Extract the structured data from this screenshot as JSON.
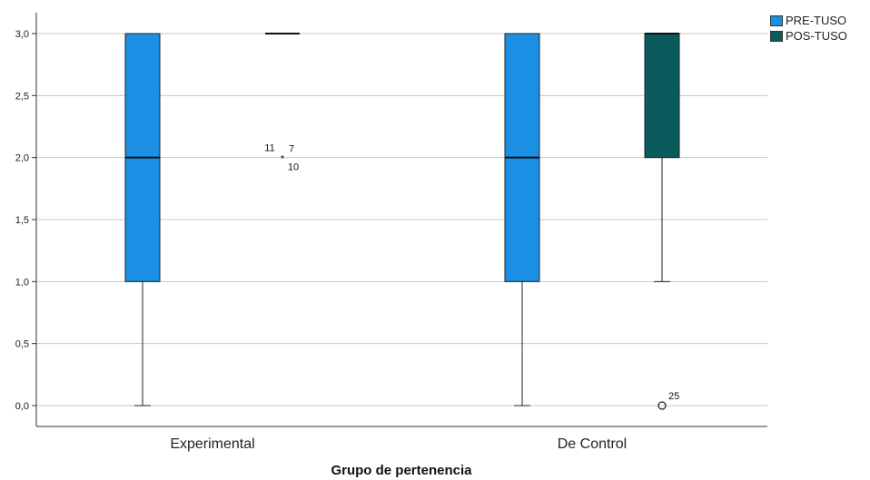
{
  "chart_data": {
    "type": "boxplot",
    "xlabel": "Grupo de pertenencia",
    "ylim": [
      0,
      3
    ],
    "yticks": [
      "0,0",
      "0,5",
      "1,0",
      "1,5",
      "2,0",
      "2,5",
      "3,0"
    ],
    "categories": [
      "Experimental",
      "De Control"
    ],
    "grid": true,
    "legend": "top-right",
    "series": [
      {
        "name": "PRE-TUSO",
        "color": "#1a8fe3",
        "boxes": [
          {
            "category": "Experimental",
            "min": 0,
            "q1": 1,
            "median": 2,
            "q3": 3,
            "max": 3,
            "outliers": []
          },
          {
            "category": "De Control",
            "min": 0,
            "q1": 1,
            "median": 2,
            "q3": 3,
            "max": 3,
            "outliers": []
          }
        ]
      },
      {
        "name": "POS-TUSO",
        "color": "#0a5c5c",
        "boxes": [
          {
            "category": "Experimental",
            "min": 3,
            "q1": 3,
            "median": 3,
            "q3": 3,
            "max": 3,
            "outliers": [
              {
                "value": 2,
                "marker": "star",
                "labels": [
                  "11",
                  "7",
                  "10"
                ]
              }
            ]
          },
          {
            "category": "De Control",
            "min": 1,
            "q1": 2,
            "median": 3,
            "q3": 3,
            "max": 3,
            "outliers": [
              {
                "value": 0,
                "marker": "circle",
                "labels": [
                  "25"
                ]
              }
            ]
          }
        ]
      }
    ]
  }
}
